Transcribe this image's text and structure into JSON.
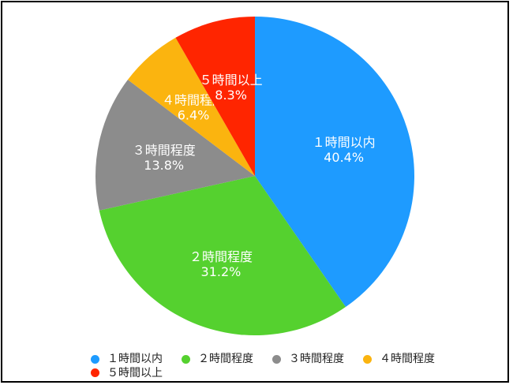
{
  "chart_data": {
    "type": "pie",
    "categories": [
      "１時間以内",
      "２時間程度",
      "３時間程度",
      "４時間程度",
      "５時間以上"
    ],
    "values": [
      40.4,
      31.2,
      13.8,
      6.4,
      8.3
    ],
    "value_labels": [
      "40.4%",
      "31.2%",
      "13.8%",
      "6.4%",
      "8.3%"
    ],
    "colors": [
      "#1E9BFF",
      "#55D12F",
      "#8C8C8C",
      "#FBB40F",
      "#FF2500"
    ],
    "start_angle_deg": 0,
    "direction": "clockwise",
    "legend_position": "bottom"
  }
}
